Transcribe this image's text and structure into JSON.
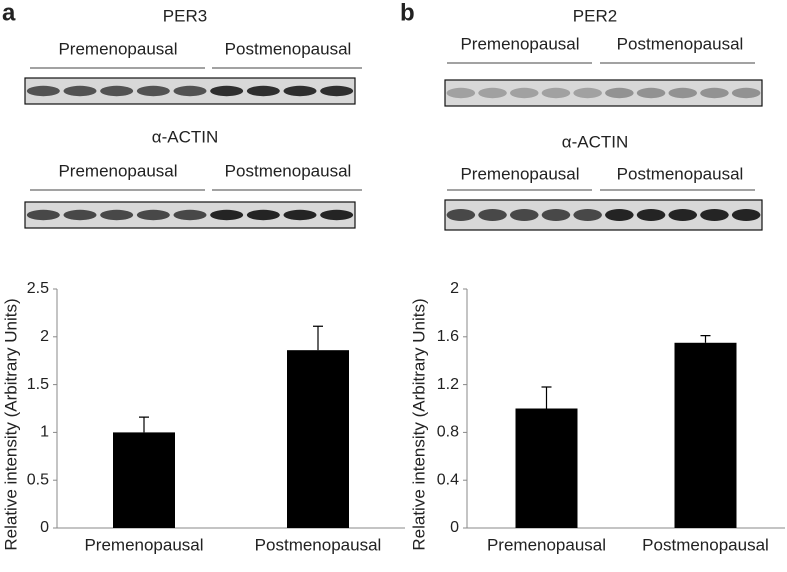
{
  "panels": [
    {
      "label": "a",
      "protein": "PER3",
      "groups": [
        "Premenopausal",
        "Postmenopausal"
      ],
      "control": "α-ACTIN",
      "control_groups": [
        "Premenopausal",
        "Postmenopausal"
      ]
    },
    {
      "label": "b",
      "protein": "PER2",
      "groups": [
        "Premenopausal",
        "Postmenopausal"
      ],
      "control": "α-ACTIN",
      "control_groups": [
        "Premenopausal",
        "Postmenopausal"
      ]
    }
  ],
  "chart_data": [
    {
      "type": "bar",
      "y_label": "Relative intensity (Arbitrary Units)",
      "categories": [
        "Premenopausal",
        "Postmenopausal"
      ],
      "values": [
        1.0,
        1.86
      ],
      "errors": [
        0.16,
        0.25
      ],
      "color": "#000000",
      "ylim": [
        0,
        2.5
      ],
      "yticks": [
        0,
        0.5,
        1,
        1.5,
        2,
        2.5
      ]
    },
    {
      "type": "bar",
      "y_label": "Relative intensity (Arbitrary Units)",
      "categories": [
        "Premenopausal",
        "Postmenopausal"
      ],
      "values": [
        1.0,
        1.55
      ],
      "errors": [
        0.18,
        0.06
      ],
      "color": "#000000",
      "ylim": [
        0,
        2
      ],
      "yticks": [
        0,
        0.4,
        0.8,
        1.2,
        1.6,
        2
      ]
    }
  ]
}
